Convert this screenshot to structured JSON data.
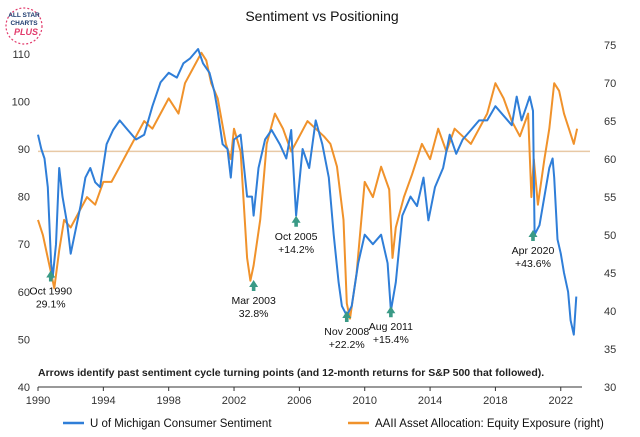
{
  "logo": {
    "line1": "ALL STAR",
    "line2": "CHARTS",
    "line3": "PLUS"
  },
  "colors": {
    "michigan": "#2f7ed8",
    "aaii": "#f0922b",
    "refline": "#e8c9a5",
    "arrow": "#3a9a86",
    "text": "#222222",
    "axis": "#333333"
  },
  "chart_data": {
    "type": "line",
    "title": "Sentiment vs Positioning",
    "note": "Arrows identify past sentiment cycle turning points (and 12-month returns for S&P 500 that followed).",
    "x_ticks": [
      "1990",
      "1994",
      "1998",
      "2002",
      "2006",
      "2010",
      "2014",
      "2018",
      "2022"
    ],
    "xlim": [
      1990,
      2023.3
    ],
    "left_axis": {
      "ylim": [
        40,
        115
      ],
      "ticks": [
        "110",
        "100",
        "90",
        "80",
        "70",
        "60",
        "50",
        "40"
      ]
    },
    "right_axis": {
      "ylim": [
        30,
        77
      ],
      "ticks": [
        "75",
        "70",
        "65",
        "60",
        "55",
        "50",
        "45",
        "40",
        "35",
        "30"
      ]
    },
    "reference_line_left": 89.5,
    "series": [
      {
        "name": "U of Michigan Consumer Sentiment",
        "axis": "left",
        "x": [
          1990.0,
          1990.2,
          1990.4,
          1990.6,
          1990.8,
          1990.9,
          1991.1,
          1991.3,
          1991.5,
          1991.8,
          1992.0,
          1992.3,
          1992.6,
          1992.9,
          1993.2,
          1993.5,
          1993.8,
          1994.2,
          1994.6,
          1995.0,
          1995.5,
          1996.0,
          1996.5,
          1997.0,
          1997.5,
          1998.0,
          1998.5,
          1998.9,
          1999.3,
          1999.8,
          2000.1,
          2000.5,
          2000.8,
          2001.0,
          2001.3,
          2001.6,
          2001.8,
          2002.0,
          2002.4,
          2002.8,
          2003.1,
          2003.2,
          2003.5,
          2003.9,
          2004.3,
          2004.8,
          2005.2,
          2005.5,
          2005.8,
          2006.2,
          2006.6,
          2007.0,
          2007.4,
          2007.8,
          2008.1,
          2008.4,
          2008.6,
          2008.9,
          2009.2,
          2009.6,
          2010.0,
          2010.5,
          2011.0,
          2011.4,
          2011.6,
          2011.9,
          2012.3,
          2012.8,
          2013.2,
          2013.6,
          2013.9,
          2014.3,
          2014.8,
          2015.2,
          2015.6,
          2016.0,
          2016.5,
          2017.0,
          2017.5,
          2018.0,
          2018.5,
          2019.0,
          2019.3,
          2019.6,
          2019.9,
          2020.1,
          2020.3,
          2020.4,
          2020.7,
          2021.0,
          2021.3,
          2021.5,
          2021.6,
          2021.8,
          2022.0,
          2022.2,
          2022.45,
          2022.6,
          2022.8,
          2022.95
        ],
        "values": [
          93,
          90,
          88,
          82,
          66,
          63,
          70,
          86,
          80,
          74,
          68,
          73,
          78,
          84,
          86,
          83,
          82,
          91,
          94,
          96,
          94,
          92,
          93,
          99,
          104,
          106,
          105,
          108,
          109,
          111,
          108,
          106,
          102,
          98,
          91,
          90,
          84,
          92,
          93,
          80,
          80,
          76,
          86,
          92,
          94,
          91,
          88,
          94,
          76,
          90,
          86,
          96,
          91,
          84,
          72,
          62,
          57,
          55,
          57,
          66,
          72,
          70,
          72,
          66,
          56,
          62,
          76,
          80,
          78,
          84,
          75,
          82,
          86,
          93,
          89,
          92,
          94,
          96,
          96,
          99,
          97,
          95,
          101,
          96,
          99,
          101,
          98,
          72,
          74,
          80,
          86,
          88,
          84,
          71,
          68,
          64,
          60,
          54,
          51,
          59
        ]
      },
      {
        "name": "AAII Asset Allocation: Equity Exposure (right)",
        "axis": "right",
        "x": [
          1990.0,
          1990.3,
          1990.6,
          1990.8,
          1991.0,
          1991.3,
          1991.6,
          1992.0,
          1992.5,
          1993.0,
          1993.5,
          1994.0,
          1994.5,
          1995.0,
          1995.5,
          1996.0,
          1996.5,
          1997.0,
          1997.5,
          1998.0,
          1998.6,
          1999.0,
          1999.5,
          2000.0,
          2000.3,
          2000.6,
          2001.0,
          2001.5,
          2001.8,
          2002.0,
          2002.4,
          2002.8,
          2003.0,
          2003.2,
          2003.6,
          2004.0,
          2004.5,
          2005.0,
          2005.5,
          2006.0,
          2006.5,
          2007.0,
          2007.5,
          2007.9,
          2008.3,
          2008.7,
          2008.9,
          2009.1,
          2009.5,
          2010.0,
          2010.5,
          2011.0,
          2011.5,
          2011.7,
          2011.9,
          2012.4,
          2012.9,
          2013.5,
          2014.0,
          2014.5,
          2015.0,
          2015.5,
          2016.0,
          2016.5,
          2017.0,
          2017.5,
          2018.0,
          2018.5,
          2019.0,
          2019.5,
          2020.0,
          2020.2,
          2020.35,
          2020.6,
          2021.0,
          2021.3,
          2021.6,
          2021.9,
          2022.2,
          2022.5,
          2022.8,
          2023.0
        ],
        "values": [
          52,
          50,
          47,
          45,
          43,
          48,
          52,
          51,
          53,
          55,
          54,
          57,
          57,
          59,
          61,
          63,
          65,
          64,
          66,
          68,
          66,
          70,
          72,
          74,
          73,
          70,
          68,
          62,
          60,
          64,
          61,
          47,
          44,
          46,
          52,
          62,
          66,
          64,
          61,
          63,
          65,
          64,
          63,
          62,
          59,
          52,
          41,
          39,
          45,
          57,
          55,
          59,
          56,
          47,
          51,
          55,
          58,
          62,
          60,
          64,
          61,
          64,
          63,
          62,
          64,
          66,
          70,
          68,
          65,
          63,
          66,
          55,
          60,
          54,
          60,
          64,
          70,
          69,
          66,
          64,
          62,
          64
        ]
      }
    ],
    "annotations": [
      {
        "date": "Oct 1990",
        "ret": "29.1%",
        "x": 1990.78,
        "y": 63
      },
      {
        "date": "Mar 2003",
        "ret": "32.8%",
        "x": 2003.2,
        "y": 61
      },
      {
        "date": "Oct 2005",
        "ret": "+14.2%",
        "x": 2005.8,
        "y": 74.5
      },
      {
        "date": "Nov 2008",
        "ret": "+22.2%",
        "x": 2008.9,
        "y": 54.5
      },
      {
        "date": "Aug 2011",
        "ret": "+15.4%",
        "x": 2011.6,
        "y": 55.5
      },
      {
        "date": "Apr 2020",
        "ret": "+43.6%",
        "x": 2020.3,
        "y": 71.5
      }
    ]
  }
}
